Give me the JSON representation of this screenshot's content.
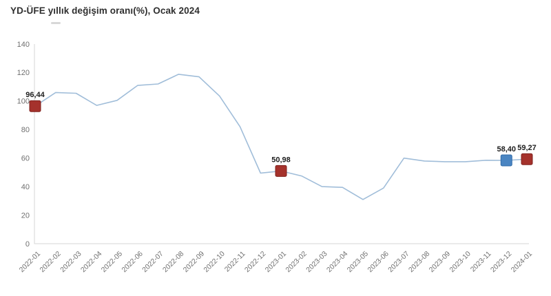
{
  "title": "YD-ÜFE yıllık değişim oranı(%), Ocak 2024",
  "colors": {
    "line": "#a0bdd9",
    "axis": "#d6d6d6",
    "tick_label": "#6f6f6f",
    "title_text": "#2f2f2f",
    "value_label": "#1c1c1c",
    "marker_red": "#a5322c",
    "marker_red_border": "#7e201d",
    "marker_blue": "#4a85c2",
    "marker_blue_border": "#2e6aa8"
  },
  "chart_data": {
    "type": "line",
    "title": "YD-ÜFE yıllık değişim oranı(%), Ocak 2024",
    "x": [
      "2022-01",
      "2022-02",
      "2022-03",
      "2022-04",
      "2022-05",
      "2022-06",
      "2022-07",
      "2022-08",
      "2022-09",
      "2022-10",
      "2022-11",
      "2022-12",
      "2023-01",
      "2023-02",
      "2023-03",
      "2023-04",
      "2023-05",
      "2023-06",
      "2023-07",
      "2023-08",
      "2023-09",
      "2023-10",
      "2023-11",
      "2023-12",
      "2024-01"
    ],
    "values": [
      96.44,
      106.0,
      105.5,
      97.0,
      100.5,
      111.0,
      112.0,
      118.8,
      117.0,
      103.5,
      82.0,
      49.5,
      50.98,
      47.5,
      40.0,
      39.5,
      31.0,
      39.0,
      60.0,
      58.0,
      57.5,
      57.5,
      58.5,
      58.4,
      59.27
    ],
    "ylim": [
      0,
      140
    ],
    "ytick_step": 20,
    "grid": false,
    "legend": "none",
    "xlabel": "",
    "ylabel": "",
    "highlights": [
      {
        "x": "2022-01",
        "value": 96.44,
        "label": "96,44",
        "color_key": "red"
      },
      {
        "x": "2023-01",
        "value": 50.98,
        "label": "50,98",
        "color_key": "red"
      },
      {
        "x": "2023-12",
        "value": 58.4,
        "label": "58,40",
        "color_key": "blue"
      },
      {
        "x": "2024-01",
        "value": 59.27,
        "label": "59,27",
        "color_key": "red"
      }
    ]
  }
}
